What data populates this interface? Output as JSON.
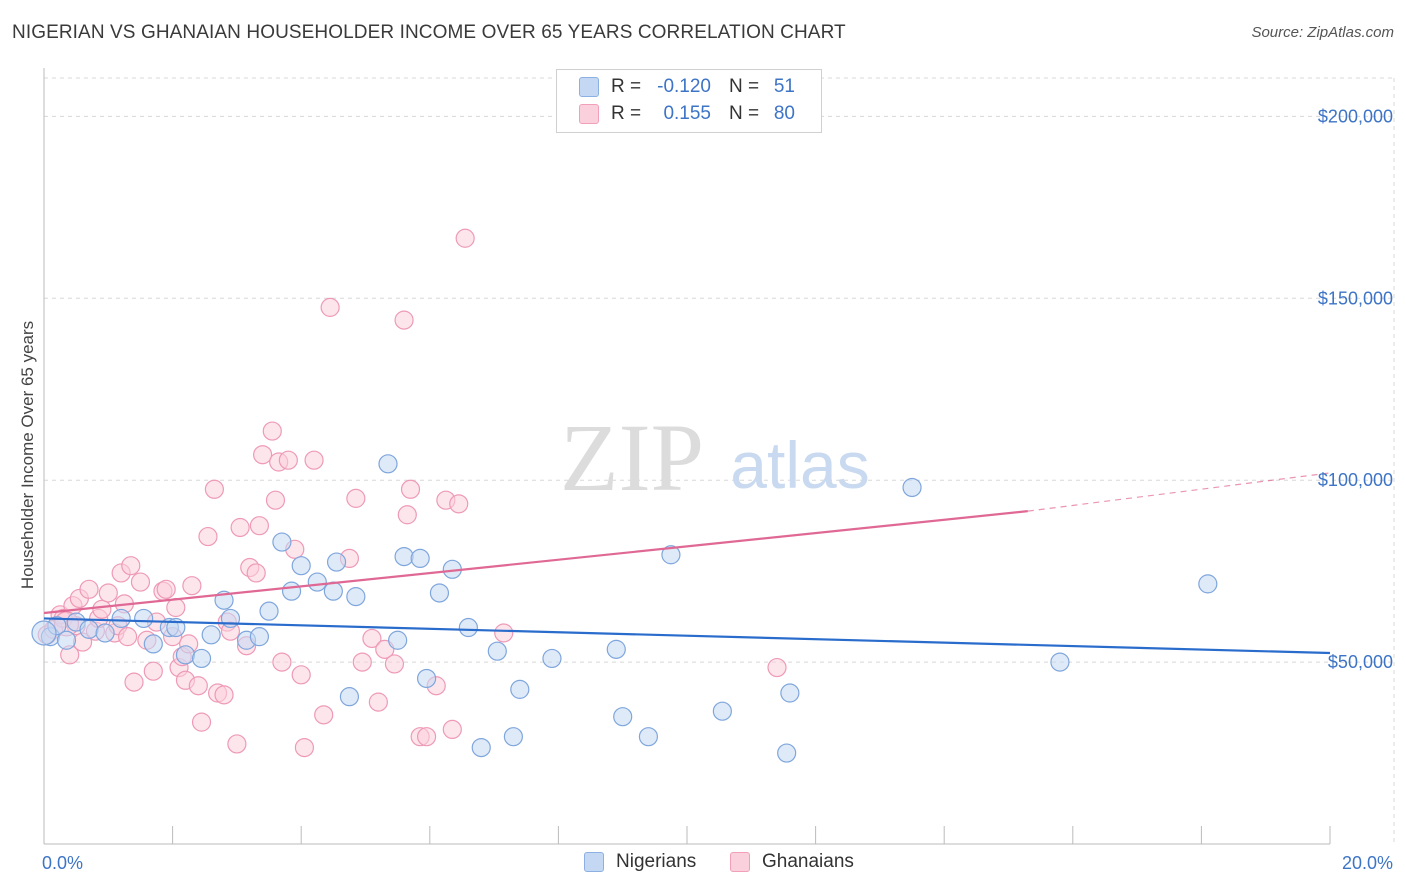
{
  "title": "NIGERIAN VS GHANAIAN HOUSEHOLDER INCOME OVER 65 YEARS CORRELATION CHART",
  "source": "Source: ZipAtlas.com",
  "watermark": {
    "zip": "ZIP",
    "atlas": "atlas"
  },
  "legend": {
    "rows": [
      {
        "r_label": "R =",
        "r_value": "-0.120",
        "n_label": "N =",
        "n_value": "51",
        "color": "#c4d8f4"
      },
      {
        "r_label": "R =",
        "r_value": "0.155",
        "n_label": "N =",
        "n_value": "80",
        "color": "#fbd0dd"
      }
    ]
  },
  "bottom_legend": {
    "nigerians": "Nigerians",
    "ghanaians": "Ghanaians"
  },
  "chart_data": {
    "type": "scatter",
    "title": "NIGERIAN VS GHANAIAN HOUSEHOLDER INCOME OVER 65 YEARS CORRELATION CHART",
    "xlabel": "",
    "ylabel": "Householder Income Over 65 years",
    "xlim": [
      0,
      20
    ],
    "ylim": [
      0,
      210000
    ],
    "x_tick_labels": [
      {
        "value": 0,
        "label": "0.0%"
      },
      {
        "value": 20,
        "label": "20.0%"
      }
    ],
    "y_ticks": [
      {
        "value": 50000,
        "label": "$50,000"
      },
      {
        "value": 100000,
        "label": "$100,000"
      },
      {
        "value": 150000,
        "label": "$150,000"
      },
      {
        "value": 200000,
        "label": "$200,000"
      }
    ],
    "grid": true,
    "legend_position": "top-center",
    "colors": {
      "nigerians": "#3d74c6",
      "ghanaians": "#e06894",
      "nigerians_fill": "#c4d8f4",
      "ghanaians_fill": "#fbd0dd"
    },
    "series": [
      {
        "name": "Nigerians",
        "points": [
          [
            0.1,
            57000
          ],
          [
            0.2,
            60000
          ],
          [
            0.35,
            56000
          ],
          [
            0.5,
            61000
          ],
          [
            0.7,
            59000
          ],
          [
            0.95,
            58000
          ],
          [
            1.2,
            62000
          ],
          [
            1.55,
            62000
          ],
          [
            1.7,
            55000
          ],
          [
            1.95,
            59500
          ],
          [
            2.05,
            59500
          ],
          [
            2.2,
            52000
          ],
          [
            2.45,
            51000
          ],
          [
            2.6,
            57500
          ],
          [
            2.8,
            67000
          ],
          [
            2.9,
            62000
          ],
          [
            3.15,
            56000
          ],
          [
            3.35,
            57000
          ],
          [
            3.5,
            64000
          ],
          [
            3.7,
            83000
          ],
          [
            3.85,
            69500
          ],
          [
            4.0,
            76500
          ],
          [
            4.25,
            72000
          ],
          [
            4.5,
            69500
          ],
          [
            4.55,
            77500
          ],
          [
            4.75,
            40500
          ],
          [
            4.85,
            68000
          ],
          [
            5.35,
            104500
          ],
          [
            5.5,
            56000
          ],
          [
            5.6,
            79000
          ],
          [
            5.85,
            78500
          ],
          [
            5.95,
            45500
          ],
          [
            6.15,
            69000
          ],
          [
            6.35,
            75500
          ],
          [
            6.6,
            59500
          ],
          [
            6.8,
            26500
          ],
          [
            7.05,
            53000
          ],
          [
            7.3,
            29500
          ],
          [
            7.4,
            42500
          ],
          [
            7.9,
            51000
          ],
          [
            8.9,
            53500
          ],
          [
            9.0,
            35000
          ],
          [
            9.4,
            29500
          ],
          [
            9.75,
            79500
          ],
          [
            10.55,
            36500
          ],
          [
            11.55,
            25000
          ],
          [
            11.6,
            41500
          ],
          [
            13.5,
            98000
          ],
          [
            15.8,
            50000
          ],
          [
            18.1,
            71500
          ],
          [
            0.0,
            58000
          ]
        ]
      },
      {
        "name": "Ghanaians",
        "points": [
          [
            0.05,
            57500
          ],
          [
            0.15,
            59000
          ],
          [
            0.25,
            63000
          ],
          [
            0.3,
            62000
          ],
          [
            0.4,
            52000
          ],
          [
            0.45,
            65500
          ],
          [
            0.5,
            60000
          ],
          [
            0.55,
            67500
          ],
          [
            0.6,
            55500
          ],
          [
            0.7,
            70000
          ],
          [
            0.8,
            58500
          ],
          [
            0.85,
            62000
          ],
          [
            0.9,
            64500
          ],
          [
            1.0,
            69000
          ],
          [
            1.1,
            58000
          ],
          [
            1.15,
            60000
          ],
          [
            1.2,
            74500
          ],
          [
            1.25,
            66000
          ],
          [
            1.3,
            57000
          ],
          [
            1.35,
            76500
          ],
          [
            1.4,
            44500
          ],
          [
            1.5,
            72000
          ],
          [
            1.6,
            56000
          ],
          [
            1.7,
            47500
          ],
          [
            1.75,
            61000
          ],
          [
            1.85,
            69500
          ],
          [
            1.9,
            70000
          ],
          [
            2.0,
            57000
          ],
          [
            2.05,
            65000
          ],
          [
            2.1,
            48500
          ],
          [
            2.15,
            51500
          ],
          [
            2.2,
            45000
          ],
          [
            2.25,
            55000
          ],
          [
            2.3,
            71000
          ],
          [
            2.4,
            43500
          ],
          [
            2.45,
            33500
          ],
          [
            2.55,
            84500
          ],
          [
            2.65,
            97500
          ],
          [
            2.7,
            41500
          ],
          [
            2.8,
            41000
          ],
          [
            2.85,
            61000
          ],
          [
            2.9,
            58500
          ],
          [
            3.0,
            27500
          ],
          [
            3.05,
            87000
          ],
          [
            3.15,
            54500
          ],
          [
            3.2,
            76000
          ],
          [
            3.3,
            74500
          ],
          [
            3.35,
            87500
          ],
          [
            3.4,
            107000
          ],
          [
            3.55,
            113500
          ],
          [
            3.6,
            94500
          ],
          [
            3.65,
            105000
          ],
          [
            3.7,
            50000
          ],
          [
            3.8,
            105500
          ],
          [
            3.9,
            81000
          ],
          [
            4.0,
            46500
          ],
          [
            4.05,
            26500
          ],
          [
            4.2,
            105500
          ],
          [
            4.35,
            35500
          ],
          [
            4.45,
            147500
          ],
          [
            4.75,
            78500
          ],
          [
            4.85,
            95000
          ],
          [
            4.95,
            50000
          ],
          [
            5.1,
            56500
          ],
          [
            5.2,
            39000
          ],
          [
            5.3,
            53500
          ],
          [
            5.45,
            49500
          ],
          [
            5.6,
            144000
          ],
          [
            5.65,
            90500
          ],
          [
            5.7,
            97500
          ],
          [
            5.85,
            29500
          ],
          [
            5.95,
            29500
          ],
          [
            6.1,
            43500
          ],
          [
            6.25,
            94500
          ],
          [
            6.35,
            31500
          ],
          [
            6.45,
            93500
          ],
          [
            6.55,
            166500
          ],
          [
            7.15,
            58000
          ],
          [
            11.4,
            48500
          ],
          [
            0.35,
            60500
          ]
        ]
      }
    ],
    "trend_lines": [
      {
        "name": "Nigerians",
        "x": [
          0,
          20
        ],
        "y": [
          62000,
          52500
        ],
        "style": "solid"
      },
      {
        "name": "Ghanaians",
        "x": [
          0,
          15.3
        ],
        "y": [
          63500,
          91500
        ],
        "style": "solid"
      },
      {
        "name": "Ghanaians",
        "x": [
          15.3,
          20
        ],
        "y": [
          91500,
          102000
        ],
        "style": "dashed"
      }
    ]
  }
}
